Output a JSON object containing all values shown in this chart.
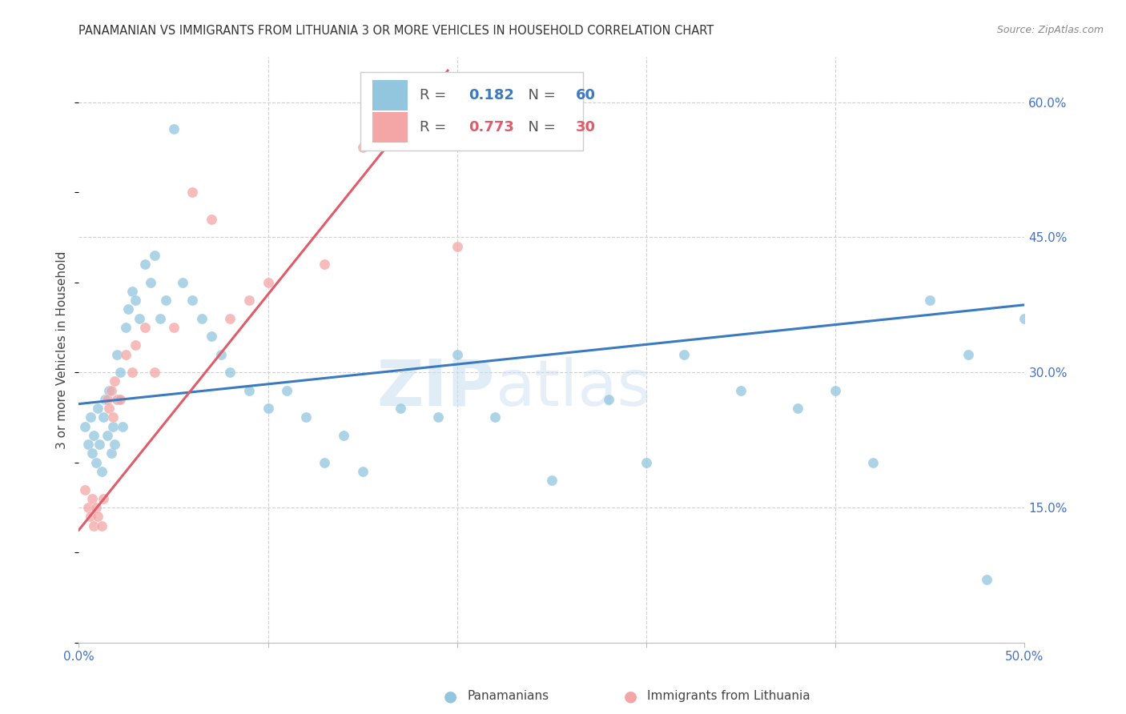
{
  "title": "PANAMANIAN VS IMMIGRANTS FROM LITHUANIA 3 OR MORE VEHICLES IN HOUSEHOLD CORRELATION CHART",
  "source": "Source: ZipAtlas.com",
  "ylabel": "3 or more Vehicles in Household",
  "xmin": 0.0,
  "xmax": 0.5,
  "ymin": 0.0,
  "ymax": 0.65,
  "xtick_positions": [
    0.0,
    0.1,
    0.2,
    0.3,
    0.4,
    0.5
  ],
  "xtick_labels": [
    "0.0%",
    "",
    "",
    "",
    "",
    "50.0%"
  ],
  "ytick_positions": [
    0.15,
    0.3,
    0.45,
    0.6
  ],
  "ytick_labels": [
    "15.0%",
    "30.0%",
    "45.0%",
    "60.0%"
  ],
  "blue_color": "#92c5de",
  "pink_color": "#f4a5a5",
  "blue_line_color": "#3a7abf",
  "pink_line_color": "#e05c6a",
  "grid_color": "#d0d0d0",
  "background_color": "#ffffff",
  "watermark_text": "ZIP",
  "watermark_text2": "atlas",
  "legend_r1": "0.182",
  "legend_n1": "60",
  "legend_r2": "0.773",
  "legend_n2": "30",
  "blue_scatter_x": [
    0.003,
    0.005,
    0.006,
    0.007,
    0.008,
    0.009,
    0.01,
    0.011,
    0.012,
    0.013,
    0.014,
    0.015,
    0.016,
    0.017,
    0.018,
    0.019,
    0.02,
    0.021,
    0.022,
    0.023,
    0.025,
    0.026,
    0.028,
    0.03,
    0.032,
    0.035,
    0.038,
    0.04,
    0.043,
    0.046,
    0.05,
    0.055,
    0.06,
    0.065,
    0.07,
    0.075,
    0.08,
    0.09,
    0.1,
    0.11,
    0.12,
    0.13,
    0.14,
    0.15,
    0.17,
    0.19,
    0.2,
    0.22,
    0.25,
    0.28,
    0.3,
    0.32,
    0.35,
    0.38,
    0.4,
    0.42,
    0.45,
    0.47,
    0.48,
    0.5
  ],
  "blue_scatter_y": [
    0.24,
    0.22,
    0.25,
    0.21,
    0.23,
    0.2,
    0.26,
    0.22,
    0.19,
    0.25,
    0.27,
    0.23,
    0.28,
    0.21,
    0.24,
    0.22,
    0.32,
    0.27,
    0.3,
    0.24,
    0.35,
    0.37,
    0.39,
    0.38,
    0.36,
    0.42,
    0.4,
    0.43,
    0.36,
    0.38,
    0.57,
    0.4,
    0.38,
    0.36,
    0.34,
    0.32,
    0.3,
    0.28,
    0.26,
    0.28,
    0.25,
    0.2,
    0.23,
    0.19,
    0.26,
    0.25,
    0.32,
    0.25,
    0.18,
    0.27,
    0.2,
    0.32,
    0.28,
    0.26,
    0.28,
    0.2,
    0.38,
    0.32,
    0.07,
    0.36
  ],
  "pink_scatter_x": [
    0.003,
    0.005,
    0.006,
    0.007,
    0.008,
    0.009,
    0.01,
    0.012,
    0.013,
    0.015,
    0.016,
    0.017,
    0.018,
    0.019,
    0.02,
    0.022,
    0.025,
    0.028,
    0.03,
    0.035,
    0.04,
    0.05,
    0.06,
    0.07,
    0.08,
    0.09,
    0.1,
    0.13,
    0.15,
    0.2
  ],
  "pink_scatter_y": [
    0.17,
    0.15,
    0.14,
    0.16,
    0.13,
    0.15,
    0.14,
    0.13,
    0.16,
    0.27,
    0.26,
    0.28,
    0.25,
    0.29,
    0.27,
    0.27,
    0.32,
    0.3,
    0.33,
    0.35,
    0.3,
    0.35,
    0.5,
    0.47,
    0.36,
    0.38,
    0.4,
    0.42,
    0.55,
    0.44
  ],
  "blue_line_x": [
    0.0,
    0.5
  ],
  "blue_line_y": [
    0.265,
    0.375
  ],
  "pink_line_x": [
    0.0,
    0.195
  ],
  "pink_line_y": [
    0.125,
    0.635
  ]
}
